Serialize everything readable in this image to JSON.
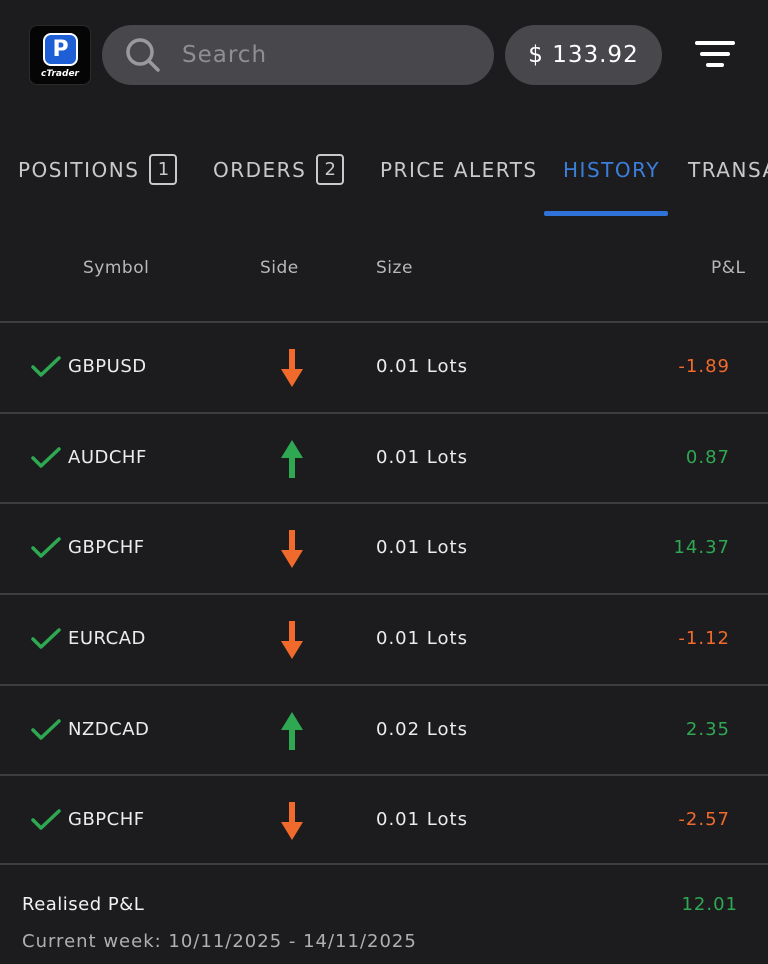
{
  "header": {
    "logo_text": "cTrader",
    "logo_letter": "P",
    "search_placeholder": "Search",
    "balance": "$ 133.92"
  },
  "tabs": [
    {
      "label": "POSITIONS",
      "count": "1"
    },
    {
      "label": "ORDERS",
      "count": "2"
    },
    {
      "label": "PRICE ALERTS"
    },
    {
      "label": "HISTORY",
      "active": true
    },
    {
      "label": "TRANSA"
    }
  ],
  "columns": {
    "symbol": "Symbol",
    "side": "Side",
    "size": "Size",
    "pnl": "P&L"
  },
  "rows": [
    {
      "symbol": "GBPUSD",
      "side": "sell",
      "size": "0.01 Lots",
      "pnl": "-1.89"
    },
    {
      "symbol": "AUDCHF",
      "side": "buy",
      "size": "0.01 Lots",
      "pnl": "0.87"
    },
    {
      "symbol": "GBPCHF",
      "side": "sell",
      "size": "0.01 Lots",
      "pnl": "14.37"
    },
    {
      "symbol": "EURCAD",
      "side": "sell",
      "size": "0.01 Lots",
      "pnl": "-1.12"
    },
    {
      "symbol": "NZDCAD",
      "side": "buy",
      "size": "0.02 Lots",
      "pnl": "2.35"
    },
    {
      "symbol": "GBPCHF",
      "side": "sell",
      "size": "0.01 Lots",
      "pnl": "-2.57"
    }
  ],
  "footer": {
    "realised_label": "Realised P&L",
    "realised_value": "12.01",
    "week_label": "Current week: 10/11/2025 - 14/11/2025"
  },
  "colors": {
    "negative": "#f06a2c",
    "positive": "#2ea952",
    "accent": "#2f72d8"
  }
}
